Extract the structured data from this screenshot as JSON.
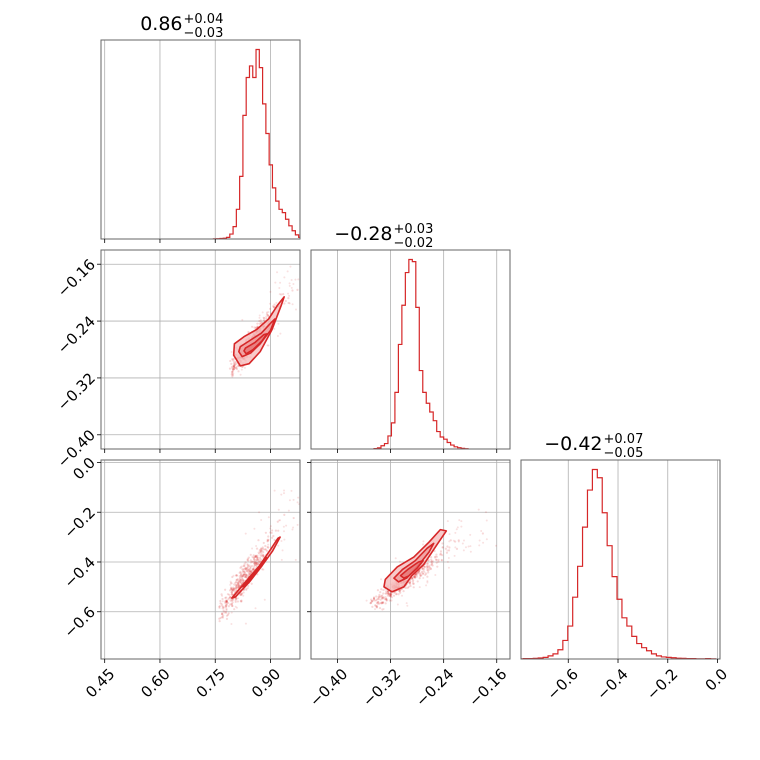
{
  "figure": {
    "type": "corner",
    "color": "#d62728",
    "grid": true
  },
  "chart_data": [
    {
      "type": "histogram",
      "row": 0,
      "col": 0,
      "title": {
        "median": "0.86",
        "upper": "+0.04",
        "lower": "−0.03"
      },
      "xlim": [
        0.44,
        0.98
      ],
      "bins": {
        "start": 0.745,
        "width": 0.0089,
        "counts": [
          1,
          2,
          3,
          5,
          10,
          30,
          75,
          180,
          380,
          750,
          980,
          1050,
          980,
          1150,
          1040,
          820,
          640,
          450,
          310,
          230,
          180,
          160,
          120,
          80,
          50,
          25,
          10,
          5
        ]
      },
      "xticks": [
        0.45,
        0.6,
        0.75,
        0.9
      ],
      "xtick_labels": [],
      "yticks": [],
      "ytick_labels": []
    },
    {
      "type": "scatter_contour",
      "row": 1,
      "col": 0,
      "xlim": [
        0.44,
        0.98
      ],
      "ylim": [
        -0.42,
        -0.14
      ],
      "xticks": [
        0.45,
        0.6,
        0.75,
        0.9
      ],
      "xtick_labels": [],
      "yticks": [
        -0.16,
        -0.24,
        -0.32,
        -0.4
      ],
      "ytick_labels": [
        "−0.16",
        "−0.24",
        "−0.32",
        "−0.40"
      ],
      "ridge": {
        "x_start": 0.8,
        "x_end": 0.97,
        "y_start": -0.305,
        "y_end": -0.185,
        "center": [
          0.845,
          -0.28
        ]
      },
      "contours": [
        [
          [
            0.802,
            -0.272
          ],
          [
            0.828,
            -0.262
          ],
          [
            0.862,
            -0.252
          ],
          [
            0.895,
            -0.237
          ],
          [
            0.92,
            -0.217
          ],
          [
            0.937,
            -0.206
          ],
          [
            0.929,
            -0.218
          ],
          [
            0.904,
            -0.252
          ],
          [
            0.872,
            -0.283
          ],
          [
            0.842,
            -0.3
          ],
          [
            0.818,
            -0.303
          ],
          [
            0.8,
            -0.288
          ]
        ],
        [
          [
            0.818,
            -0.276
          ],
          [
            0.845,
            -0.267
          ],
          [
            0.875,
            -0.257
          ],
          [
            0.902,
            -0.242
          ],
          [
            0.912,
            -0.237
          ],
          [
            0.9,
            -0.253
          ],
          [
            0.872,
            -0.272
          ],
          [
            0.846,
            -0.285
          ],
          [
            0.823,
            -0.29
          ],
          [
            0.814,
            -0.283
          ]
        ],
        [
          [
            0.832,
            -0.278
          ],
          [
            0.858,
            -0.27
          ],
          [
            0.882,
            -0.259
          ],
          [
            0.89,
            -0.258
          ],
          [
            0.877,
            -0.268
          ],
          [
            0.853,
            -0.28
          ],
          [
            0.834,
            -0.286
          ],
          [
            0.828,
            -0.282
          ]
        ]
      ]
    },
    {
      "type": "histogram",
      "row": 1,
      "col": 1,
      "title": {
        "median": "−0.28",
        "upper": "+0.03",
        "lower": "−0.02"
      },
      "xlim": [
        -0.44,
        -0.14
      ],
      "bins": {
        "start": -0.345,
        "width": 0.00525,
        "counts": [
          2,
          5,
          15,
          25,
          60,
          120,
          260,
          480,
          660,
          810,
          870,
          860,
          650,
          360,
          260,
          210,
          170,
          130,
          80,
          55,
          45,
          30,
          18,
          10,
          6,
          3,
          1
        ]
      },
      "xticks": [
        -0.4,
        -0.32,
        -0.24,
        -0.16
      ],
      "xtick_labels": [],
      "yticks": [],
      "ytick_labels": []
    },
    {
      "type": "scatter_contour",
      "row": 2,
      "col": 0,
      "xlim": [
        0.44,
        0.98
      ],
      "ylim": [
        -0.79,
        0.01
      ],
      "xticks": [
        0.45,
        0.6,
        0.75,
        0.9
      ],
      "xtick_labels": [
        "0.45",
        "0.60",
        "0.75",
        "0.90"
      ],
      "yticks": [
        0.0,
        -0.2,
        -0.4,
        -0.6
      ],
      "ytick_labels": [
        "0.0",
        "−0.2",
        "−0.4",
        "−0.6"
      ],
      "ridge": {
        "x_start": 0.77,
        "x_end": 0.97,
        "y_start": -0.6,
        "y_end": -0.15,
        "center": [
          0.86,
          -0.42
        ]
      },
      "contours": [
        [
          [
            0.795,
            -0.545
          ],
          [
            0.835,
            -0.475
          ],
          [
            0.87,
            -0.415
          ],
          [
            0.9,
            -0.35
          ],
          [
            0.92,
            -0.305
          ],
          [
            0.926,
            -0.3
          ],
          [
            0.906,
            -0.355
          ],
          [
            0.877,
            -0.415
          ],
          [
            0.843,
            -0.48
          ],
          [
            0.805,
            -0.54
          ]
        ],
        [
          [
            0.822,
            -0.5
          ],
          [
            0.85,
            -0.455
          ],
          [
            0.877,
            -0.405
          ],
          [
            0.889,
            -0.383
          ],
          [
            0.882,
            -0.4
          ],
          [
            0.856,
            -0.45
          ],
          [
            0.828,
            -0.497
          ]
        ],
        [
          [
            0.84,
            -0.47
          ],
          [
            0.864,
            -0.428
          ],
          [
            0.876,
            -0.41
          ],
          [
            0.87,
            -0.425
          ],
          [
            0.846,
            -0.467
          ]
        ]
      ]
    },
    {
      "type": "scatter_contour",
      "row": 2,
      "col": 1,
      "xlim": [
        -0.44,
        -0.14
      ],
      "ylim": [
        -0.79,
        0.01
      ],
      "xticks": [
        -0.4,
        -0.32,
        -0.24,
        -0.16
      ],
      "xtick_labels": [
        "−0.40",
        "−0.32",
        "−0.24",
        "−0.16"
      ],
      "yticks": [
        0.0,
        -0.2,
        -0.4,
        -0.6
      ],
      "ytick_labels": [],
      "ridge": {
        "x_start": -0.34,
        "x_end": -0.19,
        "y_start": -0.56,
        "y_end": -0.26,
        "center": [
          -0.29,
          -0.43
        ]
      },
      "contours": [
        [
          [
            -0.328,
            -0.47
          ],
          [
            -0.31,
            -0.42
          ],
          [
            -0.285,
            -0.38
          ],
          [
            -0.262,
            -0.32
          ],
          [
            -0.245,
            -0.27
          ],
          [
            -0.236,
            -0.275
          ],
          [
            -0.25,
            -0.33
          ],
          [
            -0.27,
            -0.41
          ],
          [
            -0.288,
            -0.455
          ],
          [
            -0.3,
            -0.5
          ],
          [
            -0.318,
            -0.52
          ],
          [
            -0.33,
            -0.5
          ]
        ],
        [
          [
            -0.315,
            -0.465
          ],
          [
            -0.302,
            -0.43
          ],
          [
            -0.283,
            -0.395
          ],
          [
            -0.265,
            -0.345
          ],
          [
            -0.255,
            -0.325
          ],
          [
            -0.262,
            -0.36
          ],
          [
            -0.28,
            -0.42
          ],
          [
            -0.296,
            -0.465
          ],
          [
            -0.308,
            -0.48
          ]
        ],
        [
          [
            -0.305,
            -0.455
          ],
          [
            -0.294,
            -0.43
          ],
          [
            -0.278,
            -0.4
          ],
          [
            -0.271,
            -0.395
          ],
          [
            -0.28,
            -0.425
          ],
          [
            -0.293,
            -0.457
          ],
          [
            -0.3,
            -0.465
          ]
        ]
      ]
    },
    {
      "type": "histogram",
      "row": 2,
      "col": 2,
      "title": {
        "median": "−0.42",
        "upper": "+0.07",
        "lower": "−0.05"
      },
      "xlim": [
        -0.79,
        0.01
      ],
      "bins": {
        "start": -0.8,
        "width": 0.0198,
        "counts": [
          1,
          2,
          2,
          3,
          5,
          8,
          15,
          25,
          45,
          90,
          160,
          300,
          450,
          640,
          820,
          920,
          880,
          710,
          550,
          400,
          290,
          200,
          160,
          110,
          75,
          55,
          40,
          25,
          15,
          10,
          8,
          6,
          4,
          3,
          2,
          2,
          1,
          1,
          2,
          1
        ]
      },
      "xticks": [
        -0.6,
        -0.4,
        -0.2,
        0.0
      ],
      "xtick_labels": [
        "−0.6",
        "−0.4",
        "−0.2",
        "0.0"
      ],
      "yticks": [],
      "ytick_labels": []
    }
  ]
}
